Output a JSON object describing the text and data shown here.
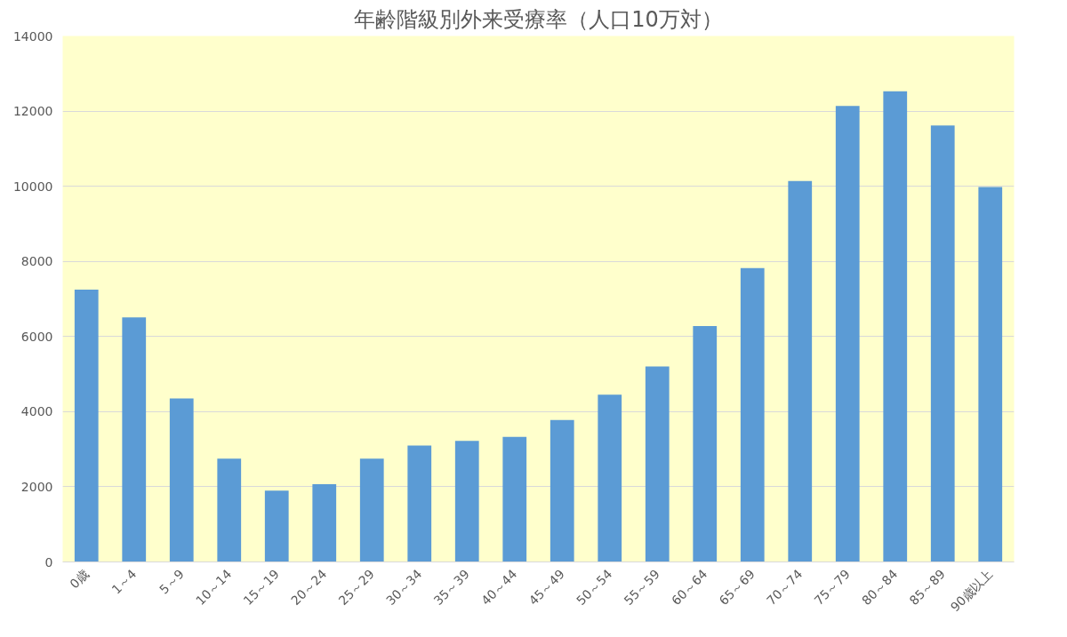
{
  "chart_data": {
    "type": "bar",
    "title": "年齢階級別外来受療率（人口10万対）",
    "categories": [
      "0歳",
      "1～4",
      "5～9",
      "10～14",
      "15～19",
      "20～24",
      "25～29",
      "30～34",
      "35～39",
      "40～44",
      "45～49",
      "50～54",
      "55～59",
      "60～64",
      "65～69",
      "70～74",
      "75～79",
      "80～84",
      "85～89",
      "90歳以上"
    ],
    "values": [
      7250,
      6510,
      4350,
      2750,
      1900,
      2070,
      2750,
      3100,
      3220,
      3330,
      3780,
      4450,
      5200,
      6280,
      7820,
      10140,
      12140,
      12530,
      11620,
      9980
    ],
    "color": "#5b9bd5",
    "ylim": [
      0,
      14000
    ],
    "yticks": [
      0,
      2000,
      4000,
      6000,
      8000,
      10000,
      12000,
      14000
    ],
    "grid": "y"
  }
}
